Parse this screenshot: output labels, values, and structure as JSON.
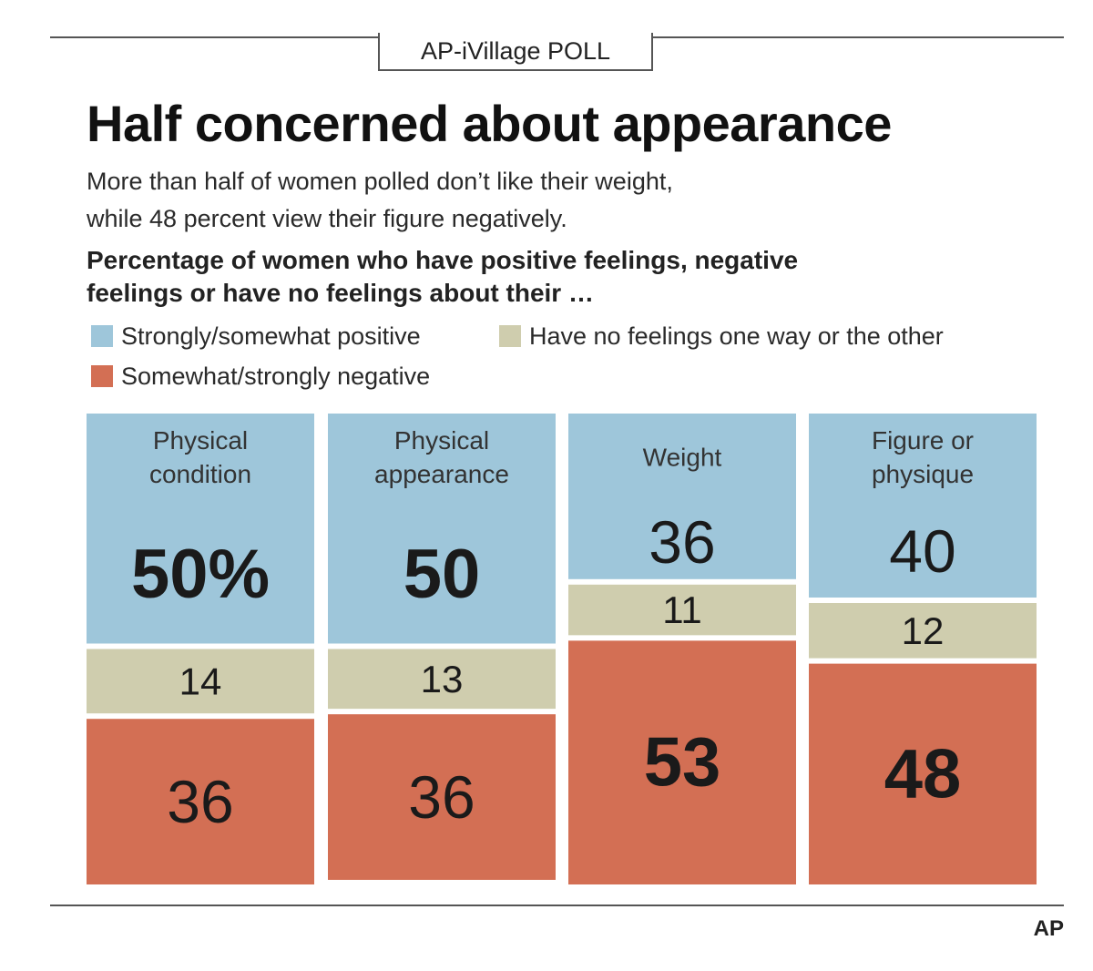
{
  "kicker": "AP-iVillage POLL",
  "title": "Half concerned about appearance",
  "subtitle_lines": [
    "More than half of women polled don’t like their weight,",
    "while 48 percent view their figure negatively."
  ],
  "chart_heading_lines": [
    "Percentage of women who have positive feelings, negative",
    "feelings or have no feelings about their …"
  ],
  "source": "AP",
  "colors": {
    "positive": "#9ec6da",
    "neutral": "#cfcdae",
    "negative": "#d36f54",
    "text": "#1a1a1a"
  },
  "chart_data": {
    "type": "bar",
    "stacked": true,
    "orientation": "vertical",
    "ylim": [
      0,
      100
    ],
    "grid": false,
    "legend_position": "top",
    "categories": [
      [
        "Physical",
        "condition"
      ],
      [
        "Physical",
        "appearance"
      ],
      [
        "Weight"
      ],
      [
        "Figure or",
        "physique"
      ]
    ],
    "series": [
      {
        "name": "Strongly/somewhat positive",
        "values": [
          50,
          50,
          36,
          40
        ],
        "labels": [
          "50%",
          "50",
          "36",
          "40"
        ],
        "bold": [
          true,
          true,
          false,
          false
        ]
      },
      {
        "name": "Have no feelings one way or the other",
        "values": [
          14,
          13,
          11,
          12
        ],
        "labels": [
          "14",
          "13",
          "11",
          "12"
        ],
        "bold": [
          false,
          false,
          false,
          false
        ]
      },
      {
        "name": "Somewhat/strongly negative",
        "values": [
          36,
          36,
          53,
          48
        ],
        "labels": [
          "36",
          "36",
          "53",
          "48"
        ],
        "bold": [
          false,
          false,
          true,
          true
        ]
      }
    ]
  }
}
